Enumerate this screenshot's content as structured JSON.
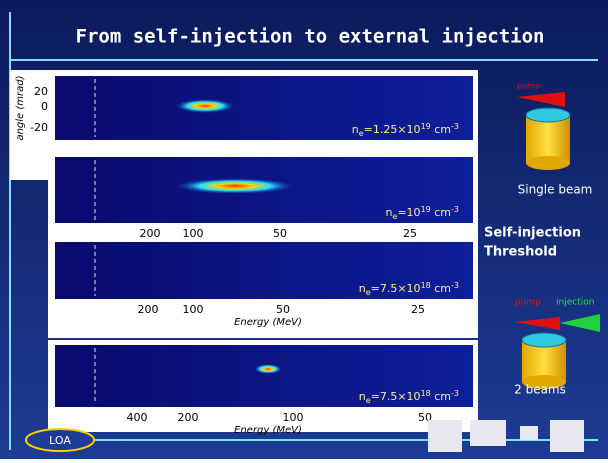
{
  "title": "From self-injection to external injection",
  "panels": [
    {
      "y_label": "angle (mrad)",
      "y_ticks": [
        "20",
        "0",
        "-20"
      ],
      "density": {
        "n": "n",
        "sub": "e",
        "value": "=1.25×10",
        "exp": "19",
        "unit": " cm",
        "unit_exp": "-3"
      }
    },
    {
      "density": {
        "n": "n",
        "sub": "e",
        "value": "=10",
        "exp": "19",
        "unit": " cm",
        "unit_exp": "-3"
      },
      "x_ticks": [
        "200",
        "100",
        "50",
        "25"
      ]
    },
    {
      "density": {
        "n": "n",
        "sub": "e",
        "value": "=7.5×10",
        "exp": "18",
        "unit": " cm",
        "unit_exp": "-3"
      },
      "x_ticks": [
        "200",
        "100",
        "50",
        "25"
      ],
      "x_label": "Energy (MeV)"
    },
    {
      "density": {
        "n": "n",
        "sub": "e",
        "value": "=7.5×10",
        "exp": "18",
        "unit": " cm",
        "unit_exp": "-3"
      },
      "x_ticks": [
        "400",
        "200",
        "100",
        "50"
      ],
      "x_label": "Energy (MeV)"
    }
  ],
  "single": {
    "pump": "pump",
    "caption": "Single beam"
  },
  "threshold": [
    "Self-injection",
    "Threshold"
  ],
  "double": {
    "pump": "pump",
    "injection": "injection",
    "caption": "2 beams"
  },
  "footer": {
    "logo": "LOA"
  }
}
